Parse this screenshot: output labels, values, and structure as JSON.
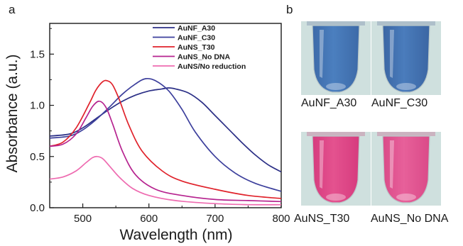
{
  "panels": {
    "a_label": "a",
    "b_label": "b"
  },
  "chart_data": {
    "type": "line",
    "xlabel": "Wavelength (nm)",
    "ylabel": "Absorbance (a.u.)",
    "xlim": [
      450,
      800
    ],
    "ylim": [
      0,
      1.8
    ],
    "x_ticks": [
      500,
      600,
      700,
      800
    ],
    "y_ticks": [
      0.0,
      0.5,
      1.0,
      1.5
    ],
    "x_tick_labels": [
      "500",
      "600",
      "700",
      "800"
    ],
    "y_tick_labels": [
      "0.0",
      "0.5",
      "1.0",
      "1.5"
    ],
    "legend_position": "top-right",
    "grid": false,
    "series": [
      {
        "name": "AuNF_A30",
        "color": "#2b2f86",
        "x": [
          450,
          480,
          500,
          520,
          540,
          560,
          580,
          600,
          620,
          630,
          640,
          660,
          680,
          700,
          720,
          740,
          760,
          780,
          800
        ],
        "y": [
          0.7,
          0.72,
          0.78,
          0.87,
          0.96,
          1.04,
          1.1,
          1.14,
          1.16,
          1.17,
          1.16,
          1.12,
          1.03,
          0.9,
          0.77,
          0.64,
          0.52,
          0.42,
          0.35
        ]
      },
      {
        "name": "AuNF_C30",
        "color": "#3c3f9c",
        "x": [
          450,
          480,
          500,
          520,
          540,
          560,
          580,
          595,
          610,
          630,
          650,
          670,
          700,
          730,
          760,
          800
        ],
        "y": [
          0.68,
          0.7,
          0.76,
          0.86,
          0.98,
          1.11,
          1.21,
          1.26,
          1.24,
          1.14,
          0.96,
          0.74,
          0.5,
          0.34,
          0.24,
          0.16
        ]
      },
      {
        "name": "AuNS_T30",
        "color": "#e0222b",
        "x": [
          450,
          470,
          490,
          510,
          520,
          530,
          537,
          545,
          555,
          570,
          590,
          620,
          650,
          700,
          750,
          800
        ],
        "y": [
          0.6,
          0.64,
          0.78,
          1.02,
          1.15,
          1.23,
          1.24,
          1.2,
          1.06,
          0.8,
          0.55,
          0.36,
          0.26,
          0.18,
          0.12,
          0.09
        ]
      },
      {
        "name": "AuNS_No DNA",
        "color": "#b6238f",
        "x": [
          450,
          470,
          490,
          505,
          515,
          525,
          535,
          545,
          560,
          580,
          610,
          650,
          700,
          750,
          800
        ],
        "y": [
          0.6,
          0.62,
          0.72,
          0.88,
          0.99,
          1.04,
          0.98,
          0.82,
          0.55,
          0.32,
          0.18,
          0.12,
          0.08,
          0.07,
          0.06
        ]
      },
      {
        "name": "AuNS/No reduction",
        "color": "#ee6bb0",
        "x": [
          450,
          470,
          490,
          505,
          515,
          522,
          530,
          540,
          555,
          575,
          600,
          640,
          700,
          750,
          800
        ],
        "y": [
          0.28,
          0.3,
          0.36,
          0.44,
          0.49,
          0.5,
          0.48,
          0.41,
          0.3,
          0.19,
          0.12,
          0.07,
          0.04,
          0.03,
          0.03
        ]
      }
    ]
  },
  "tubes": [
    {
      "label": "AuNF_A30",
      "liquid": "#4b7fbf",
      "liquid_top": "#3d6aa8",
      "rim": "#9fb0c2"
    },
    {
      "label": "AuNF_C30",
      "liquid": "#4a7cbc",
      "liquid_top": "#3b66a3",
      "rim": "#9fb0c2"
    },
    {
      "label": "AuNS_T30",
      "liquid": "#e4528f",
      "liquid_top": "#d63b7e",
      "rim": "#c9a0b4"
    },
    {
      "label": "AuNS_No DNA",
      "liquid": "#e7609a",
      "liquid_top": "#da4a88",
      "rim": "#c9a0b4"
    }
  ],
  "colors": {
    "tube_background": "#cfe0de"
  }
}
